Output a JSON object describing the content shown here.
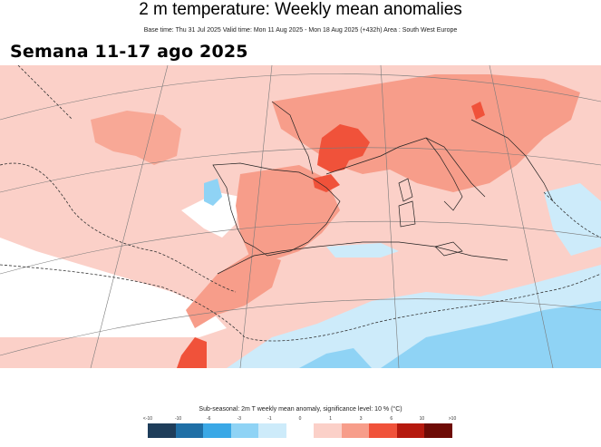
{
  "header": {
    "title": "2 m temperature: Weekly mean anomalies",
    "subtitle": "Base time: Thu 31 Jul 2025 Valid time: Mon 11 Aug 2025 - Mon 18 Aug 2025 (+432h) Area : South West Europe"
  },
  "overlay": {
    "label": "Semana 11-17 ago 2025"
  },
  "legend": {
    "title": "Sub-seasonal: 2m T weekly mean anomaly, significance level: 10 % (°C)",
    "ticks": [
      "<-10",
      "-10",
      "-6",
      "-3",
      "-1",
      "0",
      "1",
      "3",
      "6",
      "10",
      ">10"
    ],
    "colors": [
      "#1e3d5a",
      "#1f6fa6",
      "#3aa8e6",
      "#8fd3f5",
      "#cdebfa",
      "#ffffff",
      "#fbd0c8",
      "#f79d8a",
      "#f0523a",
      "#b5190e",
      "#6e0b06"
    ]
  },
  "map": {
    "area": "South West Europe",
    "fill_colors": {
      "neutral": "#ffffff",
      "light_warm": "#fbd0c8",
      "warm": "#f79d8a",
      "hot": "#f0523a",
      "light_cool": "#cdebfa",
      "cool": "#8fd3f5"
    }
  }
}
